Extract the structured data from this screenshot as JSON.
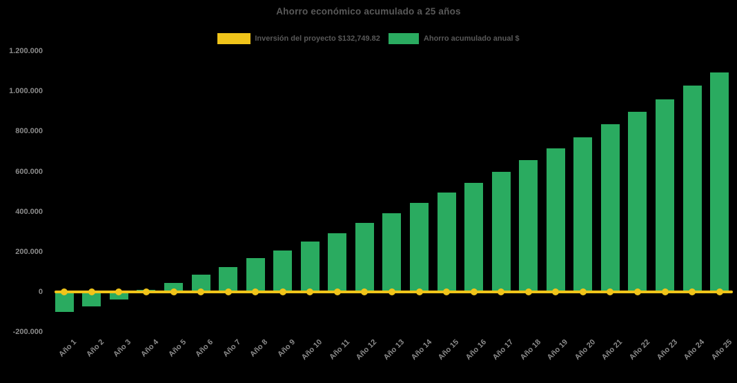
{
  "chart_data": {
    "type": "bar",
    "title": "Ahorro económico acumulado a 25 años",
    "categories": [
      "Año 1",
      "Año 2",
      "Año 3",
      "Año 4",
      "Año 5",
      "Año 6",
      "Año 7",
      "Año 8",
      "Año 9",
      "Año 10",
      "Año 11",
      "Año 12",
      "Año 13",
      "Año 14",
      "Año 15",
      "Año 16",
      "Año 17",
      "Año 18",
      "Año 19",
      "Año 20",
      "Año 21",
      "Año 22",
      "Año 23",
      "Año 24",
      "Año 25"
    ],
    "series": [
      {
        "name": "Inversión del proyecto $132,749.82",
        "type": "line",
        "marker": "circle",
        "color": "#F0C41A",
        "values": [
          0,
          0,
          0,
          0,
          0,
          0,
          0,
          0,
          0,
          0,
          0,
          0,
          0,
          0,
          0,
          0,
          0,
          0,
          0,
          0,
          0,
          0,
          0,
          0,
          0
        ]
      },
      {
        "name": "Ahorro acumulado anual $",
        "type": "bar",
        "color": "#2AAB60",
        "values": [
          -100000,
          -71000,
          -38500,
          11000,
          45500,
          85500,
          123000,
          168000,
          208000,
          252000,
          293000,
          345500,
          392500,
          442000,
          493500,
          542500,
          597500,
          655000,
          716000,
          771000,
          836000,
          896500,
          960000,
          1028500,
          1095000
        ]
      }
    ],
    "xlabel": "",
    "ylabel": "",
    "ylim": [
      -200000,
      1200000
    ],
    "ytick_interval": 200000,
    "ytick_labels": [
      "1.200.000",
      "1.000.000",
      "800.000",
      "600.000",
      "400.000",
      "200.000",
      "0",
      "-200.000"
    ],
    "legend_position": "top-center",
    "grid": false,
    "colors": {
      "background": "#000000",
      "title_text": "#595959",
      "legend_text": "#595959",
      "axis_text": "#8C8C8C"
    }
  }
}
